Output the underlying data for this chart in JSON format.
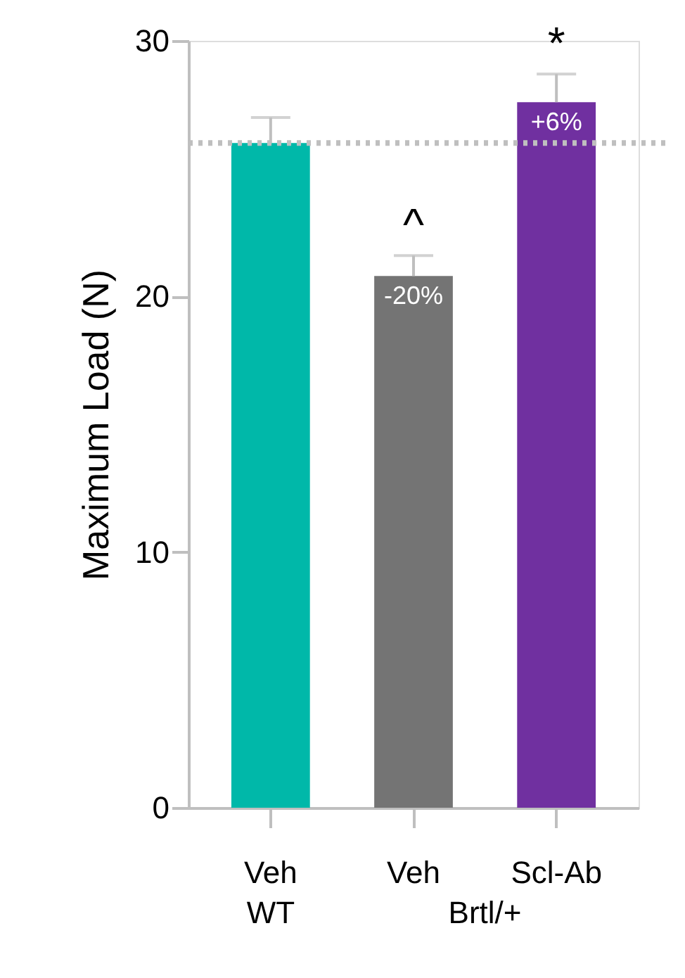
{
  "chart_data": {
    "type": "bar",
    "ylabel": "Maximum Load (N)",
    "categories": [
      "Veh",
      "Veh",
      "Scl-Ab"
    ],
    "values": [
      26.0,
      20.8,
      27.6
    ],
    "colors": [
      "#00b8a9",
      "#747474",
      "#7030a0"
    ],
    "errors": [
      [
        26.0,
        27.0
      ],
      [
        20.8,
        21.6
      ],
      [
        27.6,
        28.7
      ]
    ],
    "ylim": [
      0,
      30
    ],
    "yticks": [
      0,
      10,
      20,
      30
    ],
    "grid": false,
    "ref_lines": [
      {
        "axis": "y",
        "value": 26.0,
        "color": "#bfbfbf",
        "line_style": "dotted"
      }
    ],
    "annotations": [
      "^",
      "*",
      "-20%",
      "+6%",
      "WT",
      "Brtl/+"
    ]
  }
}
